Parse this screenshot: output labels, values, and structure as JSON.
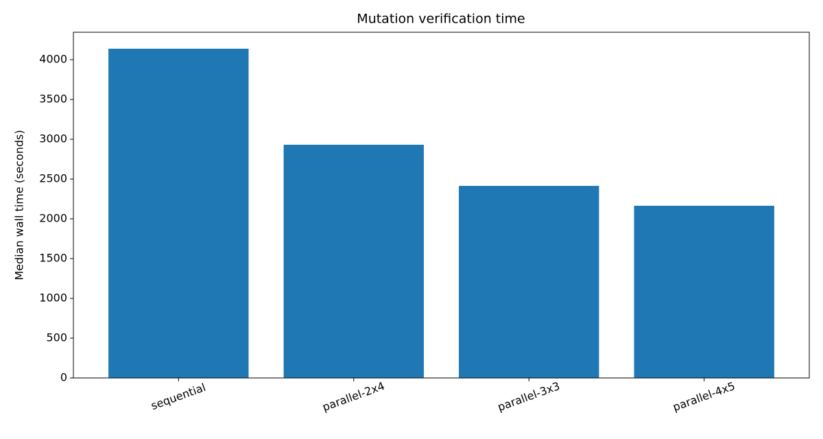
{
  "chart_data": {
    "type": "bar",
    "title": "Mutation verification time",
    "y_label": "Median wall time (seconds)",
    "categories": [
      "sequential",
      "parallel-2x4",
      "parallel-3x3",
      "parallel-4x5"
    ],
    "values": [
      4138,
      2931,
      2414,
      2164
    ],
    "color": "#1f77b4",
    "ylim": [
      0,
      4345
    ],
    "yticks": [
      0,
      500,
      1000,
      1500,
      2000,
      2500,
      3000,
      3500,
      4000
    ],
    "grid": false
  }
}
